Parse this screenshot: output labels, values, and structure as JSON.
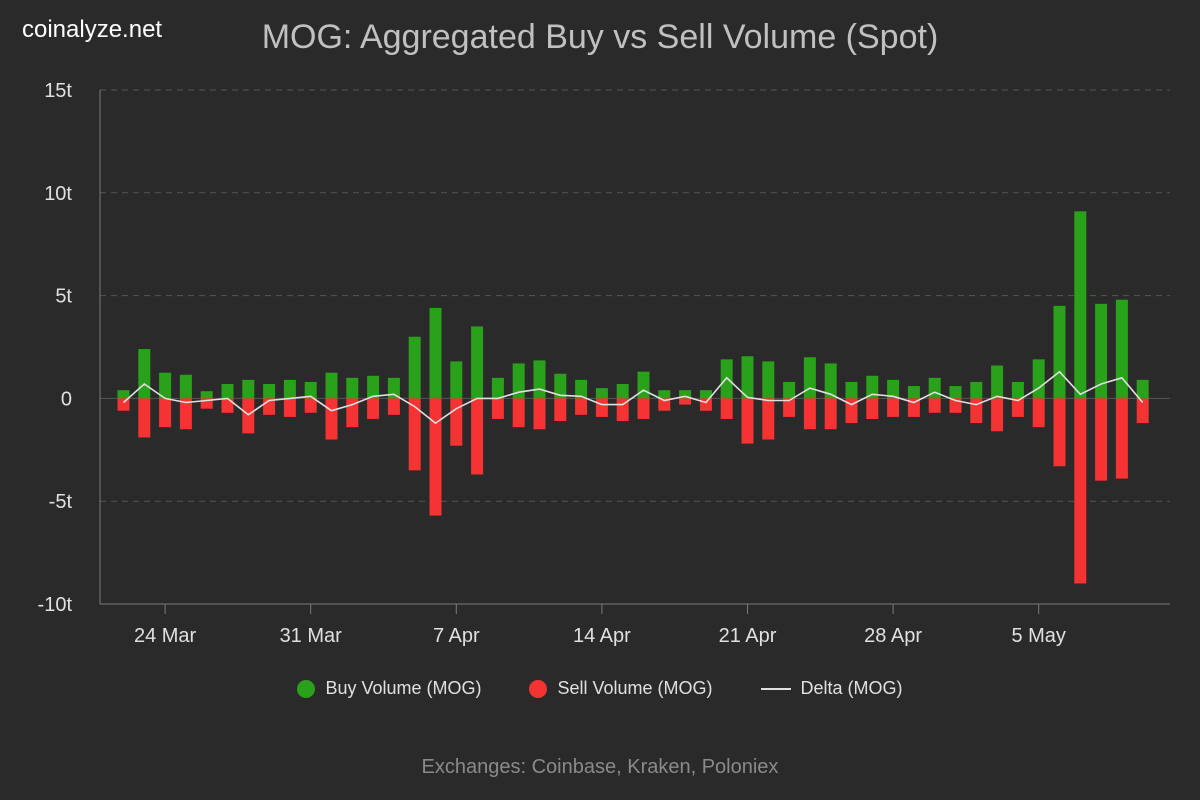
{
  "brand": "coinalyze.net",
  "footer": "Exchanges: Coinbase, Kraken, Poloniex",
  "colors": {
    "buy": "#2aa11a",
    "sell": "#f53333",
    "delta": "#e0e0e0",
    "background": "#2a2a2b",
    "grid": "#555555"
  },
  "chart_data": {
    "type": "bar",
    "title": "MOG: Aggregated Buy vs Sell Volume (Spot)",
    "xlabel": "",
    "ylabel": "",
    "ylim": [
      -10,
      15
    ],
    "y_ticks": [
      15,
      10,
      5,
      0,
      -5,
      -10
    ],
    "y_tick_labels": [
      "15t",
      "10t",
      "5t",
      "0",
      "-5t",
      "-10t"
    ],
    "x_start_date": "2024-03-22",
    "x_tick_labels": [
      {
        "date": "2024-03-24",
        "label": "24 Mar"
      },
      {
        "date": "2024-03-31",
        "label": "31 Mar"
      },
      {
        "date": "2024-04-07",
        "label": "7 Apr"
      },
      {
        "date": "2024-04-14",
        "label": "14 Apr"
      },
      {
        "date": "2024-04-21",
        "label": "21 Apr"
      },
      {
        "date": "2024-04-28",
        "label": "28 Apr"
      },
      {
        "date": "2024-05-05",
        "label": "5 May"
      }
    ],
    "grid": true,
    "legend_position": "bottom-center",
    "series": [
      {
        "name": "Buy Volume (MOG)",
        "values": [
          0.4,
          2.4,
          1.25,
          1.15,
          0.35,
          0.7,
          0.9,
          0.7,
          0.9,
          0.8,
          1.25,
          1.0,
          1.1,
          1.0,
          3.0,
          4.4,
          1.8,
          3.5,
          1.0,
          1.7,
          1.85,
          1.2,
          0.9,
          0.5,
          0.7,
          1.3,
          0.4,
          0.4,
          0.4,
          1.9,
          2.05,
          1.8,
          0.8,
          2.0,
          1.7,
          0.8,
          1.1,
          0.9,
          0.6,
          1.0,
          0.6,
          0.8,
          1.6,
          0.8,
          1.9,
          4.5,
          9.1,
          4.6,
          4.8,
          0.9
        ]
      },
      {
        "name": "Sell Volume (MOG)",
        "values": [
          -0.6,
          -1.9,
          -1.4,
          -1.5,
          -0.5,
          -0.7,
          -1.7,
          -0.8,
          -0.9,
          -0.7,
          -2.0,
          -1.4,
          -1.0,
          -0.8,
          -3.5,
          -5.7,
          -2.3,
          -3.7,
          -1.0,
          -1.4,
          -1.5,
          -1.1,
          -0.8,
          -0.9,
          -1.1,
          -1.0,
          -0.6,
          -0.3,
          -0.6,
          -1.0,
          -2.2,
          -2.0,
          -0.9,
          -1.5,
          -1.5,
          -1.2,
          -1.0,
          -0.9,
          -0.9,
          -0.7,
          -0.7,
          -1.2,
          -1.6,
          -0.9,
          -1.4,
          -3.3,
          -9.0,
          -4.0,
          -3.9,
          -1.2
        ]
      },
      {
        "name": "Delta (MOG)",
        "type": "line",
        "values": [
          -0.2,
          0.7,
          0.0,
          -0.2,
          -0.1,
          0.0,
          -0.8,
          -0.1,
          0.0,
          0.1,
          -0.6,
          -0.3,
          0.1,
          0.2,
          -0.4,
          -1.2,
          -0.5,
          0.0,
          0.0,
          0.3,
          0.45,
          0.15,
          0.1,
          -0.3,
          -0.3,
          0.4,
          -0.1,
          0.1,
          -0.2,
          1.0,
          0.05,
          -0.1,
          -0.1,
          0.5,
          0.2,
          -0.3,
          0.2,
          0.1,
          -0.2,
          0.3,
          -0.1,
          -0.3,
          0.1,
          -0.1,
          0.5,
          1.3,
          0.2,
          0.7,
          1.0,
          -0.2
        ]
      }
    ]
  }
}
